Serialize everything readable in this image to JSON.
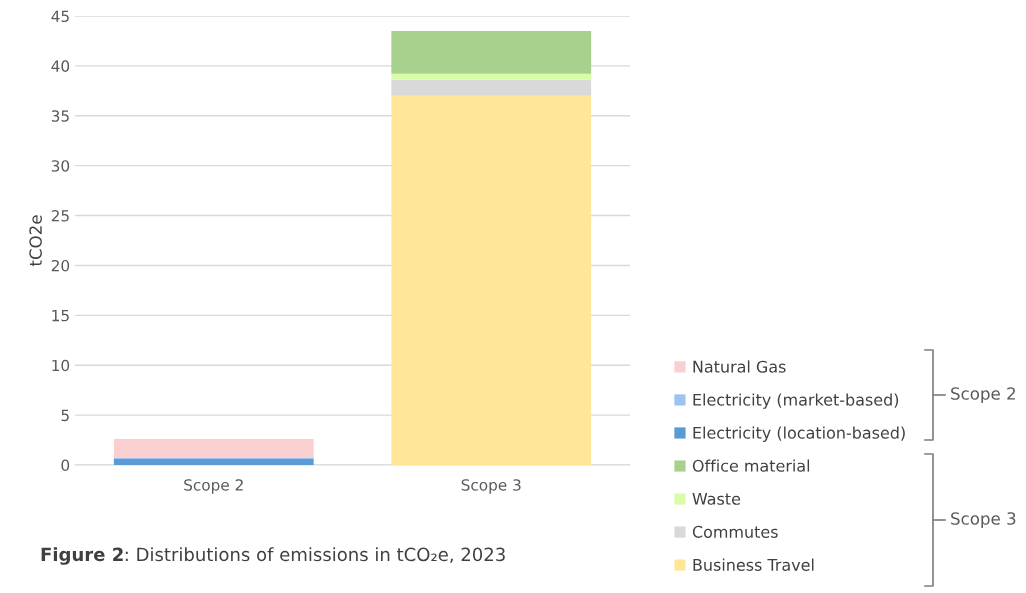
{
  "chart_data": {
    "type": "bar",
    "stacked": true,
    "ylabel": "tCO2e",
    "categories": [
      "Scope 2",
      "Scope 3"
    ],
    "series": [
      {
        "name": "Business Travel",
        "color": "#ffe699",
        "values": [
          0,
          37.0
        ]
      },
      {
        "name": "Commutes",
        "color": "#d9d9d9",
        "values": [
          0,
          1.6
        ]
      },
      {
        "name": "Waste",
        "color": "#dafca8",
        "values": [
          0,
          0.6
        ]
      },
      {
        "name": "Office material",
        "color": "#a9d18e",
        "values": [
          0,
          4.3
        ]
      },
      {
        "name": "Electricity (location-based)",
        "color": "#5b9bd5",
        "values": [
          0.6,
          0
        ]
      },
      {
        "name": "Electricity (market-based)",
        "color": "#9dc3f0",
        "values": [
          0.1,
          0
        ]
      },
      {
        "name": "Natural Gas",
        "color": "#f9cfcf",
        "values": [
          1.9,
          0
        ]
      }
    ],
    "ylim": [
      0,
      45
    ],
    "yticks": [
      0,
      5,
      10,
      15,
      20,
      25,
      30,
      35,
      40,
      45
    ],
    "grid": "y",
    "legend": "right",
    "annotations": [
      "Scope 2",
      "Scope 3",
      "Figure 2: Distributions of emissions in tCO₂e, 2023"
    ]
  }
}
